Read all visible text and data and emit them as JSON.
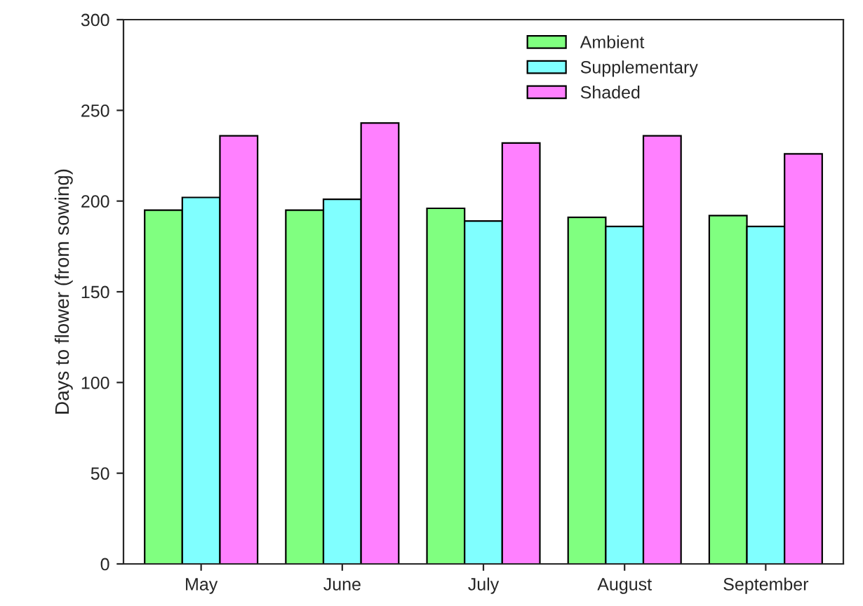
{
  "chart_data": {
    "type": "bar",
    "ylabel": "Days to flower (from sowing)",
    "categories": [
      "May",
      "June",
      "July",
      "August",
      "September"
    ],
    "series": [
      {
        "name": "Ambient",
        "color": "#80ff80",
        "values": [
          195,
          195,
          196,
          191,
          192
        ]
      },
      {
        "name": "Supplementary",
        "color": "#80ffff",
        "values": [
          202,
          201,
          189,
          186,
          186
        ]
      },
      {
        "name": "Shaded",
        "color": "#ff80ff",
        "values": [
          236,
          243,
          232,
          236,
          226
        ]
      }
    ],
    "ylim": [
      0,
      300
    ],
    "yticks": [
      0,
      50,
      100,
      150,
      200,
      250,
      300
    ],
    "grid": false,
    "legend": "top right"
  }
}
